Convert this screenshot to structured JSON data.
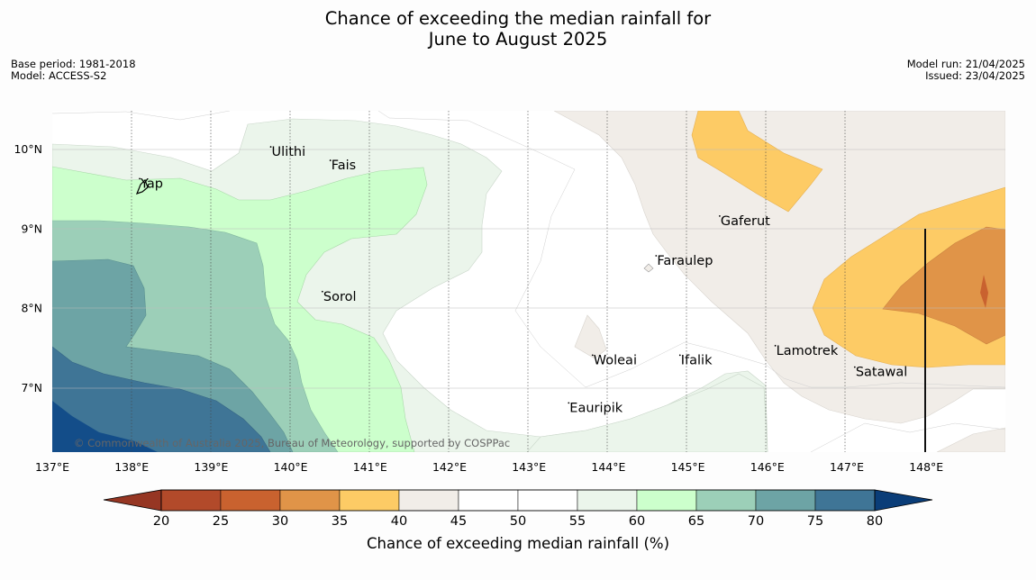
{
  "title": {
    "line1": "Chance of exceeding the median rainfall for",
    "line2": "June to August 2025"
  },
  "meta": {
    "base_period": "Base period: 1981-2018",
    "model": "Model: ACCESS-S2",
    "model_run": "Model run: 21/04/2025",
    "issued": "Issued: 23/04/2025"
  },
  "map": {
    "lon_ticks": [
      "137°E",
      "138°E",
      "139°E",
      "140°E",
      "141°E",
      "142°E",
      "143°E",
      "144°E",
      "145°E",
      "146°E",
      "147°E",
      "148°E"
    ],
    "lat_ticks": [
      "10°N",
      "9°N",
      "8°N",
      "7°N"
    ],
    "places": [
      {
        "name": "Ulithi",
        "lon": 139.75,
        "lat": 9.92
      },
      {
        "name": "Fais",
        "lon": 140.5,
        "lat": 9.75
      },
      {
        "name": "Yap",
        "lon": 138.1,
        "lat": 9.52
      },
      {
        "name": "Gaferut",
        "lon": 145.4,
        "lat": 9.05
      },
      {
        "name": "Faraulep",
        "lon": 144.6,
        "lat": 8.55
      },
      {
        "name": "Sorol",
        "lon": 140.4,
        "lat": 8.1
      },
      {
        "name": "Lamotrek",
        "lon": 146.1,
        "lat": 7.42
      },
      {
        "name": "Woleai",
        "lon": 143.8,
        "lat": 7.3
      },
      {
        "name": "Ifalik",
        "lon": 144.9,
        "lat": 7.3
      },
      {
        "name": "Satawal",
        "lon": 147.1,
        "lat": 7.15
      },
      {
        "name": "Eauripik",
        "lon": 143.5,
        "lat": 6.7
      }
    ],
    "copyright": "© Commonwealth of Australia 2025, Bureau of Meteorology, supported by COSPPac"
  },
  "colorbar": {
    "ticks": [
      "20",
      "25",
      "30",
      "35",
      "40",
      "45",
      "50",
      "55",
      "60",
      "65",
      "70",
      "75",
      "80"
    ],
    "colors": [
      "#b24a2a",
      "#c9622f",
      "#e09448",
      "#fdcb65",
      "#f1ede8",
      "#ffffff",
      "#ffffff",
      "#ebf5eb",
      "#ccffcc",
      "#9ccfb8",
      "#6da4a5",
      "#3f7596",
      "#134d89"
    ],
    "label": "Chance of exceeding median rainfall (%)"
  }
}
